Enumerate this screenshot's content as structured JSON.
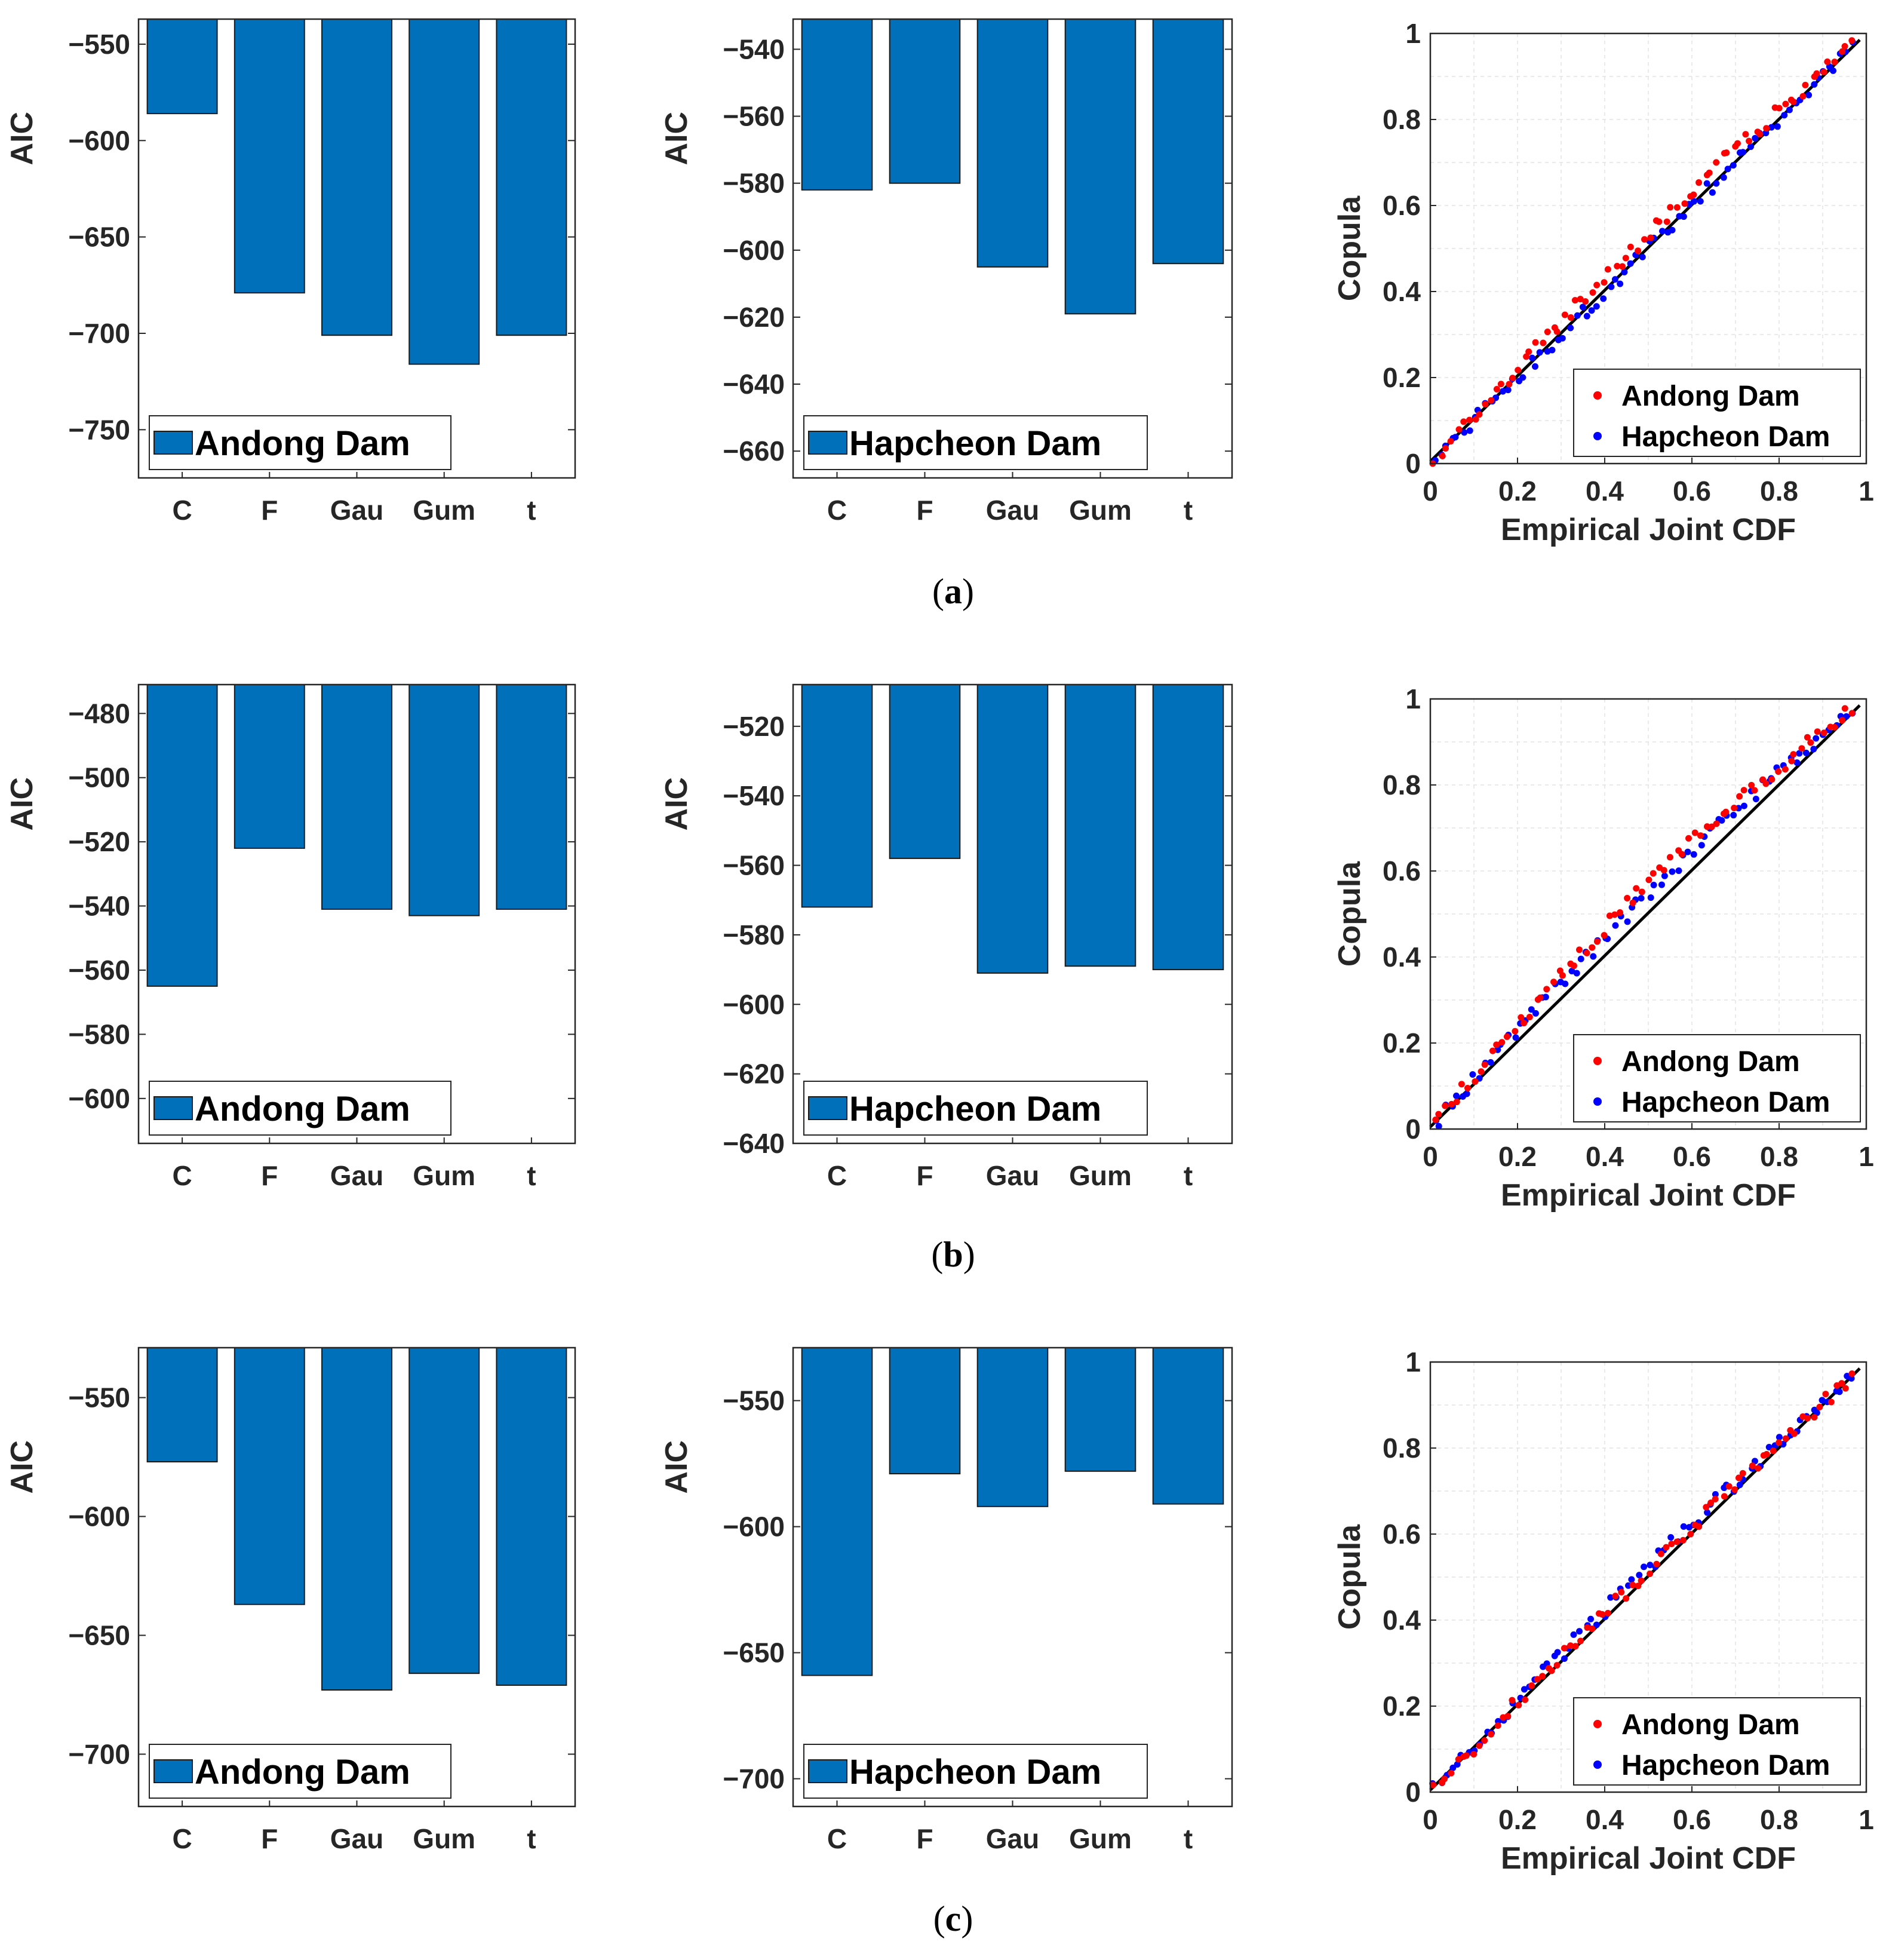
{
  "chart_data": [
    {
      "id": "a-andong",
      "type": "bar",
      "ylabel": "AIC",
      "categories": [
        "C",
        "F",
        "Gau",
        "Gum",
        "t"
      ],
      "values": [
        -586,
        -679,
        -701,
        -716,
        -701
      ],
      "ylim": [
        -775,
        -537
      ],
      "yticks": [
        -550,
        -600,
        -650,
        -700,
        -750
      ],
      "legend": "Andong Dam",
      "color": "#0070BA"
    },
    {
      "id": "a-hapcheon",
      "type": "bar",
      "ylabel": "AIC",
      "categories": [
        "C",
        "F",
        "Gau",
        "Gum",
        "t"
      ],
      "values": [
        -582,
        -580,
        -605,
        -619,
        -604
      ],
      "ylim": [
        -668,
        -531
      ],
      "yticks": [
        -540,
        -560,
        -580,
        -600,
        -620,
        -640,
        -660
      ],
      "legend": "Hapcheon Dam",
      "color": "#0070BA"
    },
    {
      "id": "a-scatter",
      "type": "scatter",
      "xlabel": "Empirical Joint CDF",
      "ylabel": "Copula",
      "xlim": [
        0,
        1
      ],
      "ylim": [
        0,
        1
      ],
      "xticks": [
        "0",
        "0.2",
        "0.4",
        "0.6",
        "0.8",
        "1"
      ],
      "yticks": [
        "0",
        "0.2",
        "0.4",
        "0.6",
        "0.8",
        "1"
      ],
      "series": [
        {
          "name": "Andong Dam",
          "color": "#FF0000"
        },
        {
          "name": "Hapcheon Dam",
          "color": "#0000FF"
        }
      ],
      "reference_line": "y = x",
      "seed": 11,
      "bias_blue": 0.022,
      "bias_red": 0.0
    },
    {
      "id": "b-andong",
      "type": "bar",
      "ylabel": "AIC",
      "categories": [
        "C",
        "F",
        "Gau",
        "Gum",
        "t"
      ],
      "values": [
        -565,
        -522,
        -541,
        -543,
        -541
      ],
      "ylim": [
        -614,
        -471
      ],
      "yticks": [
        -480,
        -500,
        -520,
        -540,
        -560,
        -580,
        -600
      ],
      "legend": "Andong Dam",
      "color": "#0070BA"
    },
    {
      "id": "b-hapcheon",
      "type": "bar",
      "ylabel": "AIC",
      "categories": [
        "C",
        "F",
        "Gau",
        "Gum",
        "t"
      ],
      "values": [
        -572,
        -558,
        -591,
        -589,
        -590
      ],
      "ylim": [
        -640,
        -508
      ],
      "yticks": [
        -520,
        -540,
        -560,
        -580,
        -600,
        -620,
        -640
      ],
      "legend": "Hapcheon Dam",
      "color": "#0070BA"
    },
    {
      "id": "b-scatter",
      "type": "scatter",
      "xlabel": "Empirical Joint CDF",
      "ylabel": "Copula",
      "xlim": [
        0,
        1
      ],
      "ylim": [
        0,
        1
      ],
      "xticks": [
        "0",
        "0.2",
        "0.4",
        "0.6",
        "0.8",
        "1"
      ],
      "yticks": [
        "0",
        "0.2",
        "0.4",
        "0.6",
        "0.8",
        "1"
      ],
      "series": [
        {
          "name": "Andong Dam",
          "color": "#FF0000"
        },
        {
          "name": "Hapcheon Dam",
          "color": "#0000FF"
        }
      ],
      "reference_line": "y = x",
      "seed": 23,
      "bias_blue": 0.045,
      "bias_red": 0.03
    },
    {
      "id": "c-andong",
      "type": "bar",
      "ylabel": "AIC",
      "categories": [
        "C",
        "F",
        "Gau",
        "Gum",
        "t"
      ],
      "values": [
        -577,
        -637,
        -673,
        -666,
        -671
      ],
      "ylim": [
        -722,
        -529
      ],
      "yticks": [
        -550,
        -600,
        -650,
        -700
      ],
      "legend": "Andong Dam",
      "color": "#0070BA"
    },
    {
      "id": "c-hapcheon",
      "type": "bar",
      "ylabel": "AIC",
      "categories": [
        "C",
        "F",
        "Gau",
        "Gum",
        "t"
      ],
      "values": [
        -659,
        -579,
        -592,
        -578,
        -591
      ],
      "ylim": [
        -711,
        -529
      ],
      "yticks": [
        -550,
        -600,
        -650,
        -700
      ],
      "legend": "Hapcheon Dam",
      "color": "#0070BA"
    },
    {
      "id": "c-scatter",
      "type": "scatter",
      "xlabel": "Empirical Joint CDF",
      "ylabel": "Copula",
      "xlim": [
        0,
        1
      ],
      "ylim": [
        0,
        1
      ],
      "xticks": [
        "0",
        "0.2",
        "0.4",
        "0.6",
        "0.8",
        "1"
      ],
      "yticks": [
        "0",
        "0.2",
        "0.4",
        "0.6",
        "0.8",
        "1"
      ],
      "series": [
        {
          "name": "Andong Dam",
          "color": "#FF0000"
        },
        {
          "name": "Hapcheon Dam",
          "color": "#0000FF"
        }
      ],
      "reference_line": "y = x",
      "seed": 37,
      "bias_blue": 0.01,
      "bias_red": 0.015
    }
  ],
  "captions": [
    {
      "open": "(",
      "letter": "a",
      "close": ")"
    },
    {
      "open": "(",
      "letter": "b",
      "close": ")"
    },
    {
      "open": "(",
      "letter": "c",
      "close": ")"
    }
  ]
}
